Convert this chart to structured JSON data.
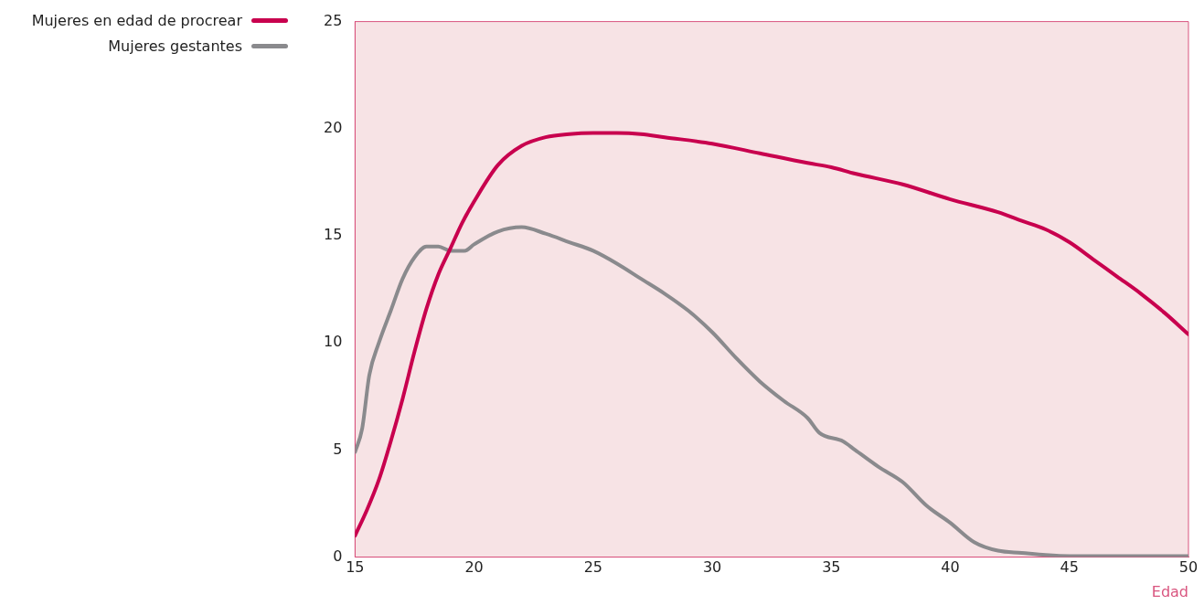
{
  "chart_data": {
    "type": "line",
    "xlabel": "Edad",
    "xlim": [
      15,
      50
    ],
    "xticks": [
      15,
      20,
      25,
      30,
      35,
      40,
      45,
      50
    ],
    "ylim": [
      0,
      25
    ],
    "yticks": [
      0,
      5,
      10,
      15,
      20,
      25
    ],
    "grid": false,
    "legend": "top left",
    "marker": "none",
    "line_style": "solid",
    "series": [
      {
        "name": "Mujeres en edad de procrear",
        "color": "#c8004e",
        "x": [
          15,
          15.5,
          16,
          16.5,
          17,
          17.5,
          18,
          18.5,
          19,
          19.5,
          20,
          21,
          22,
          23,
          24,
          25,
          26,
          27,
          28,
          30,
          32,
          34,
          35,
          36,
          38,
          40,
          42,
          43,
          44,
          45,
          46,
          47,
          48,
          49,
          50
        ],
        "values": [
          1,
          2.2,
          3.6,
          5.4,
          7.4,
          9.6,
          11.6,
          13.2,
          14.4,
          15.6,
          16.6,
          18.3,
          19.2,
          19.6,
          19.75,
          19.8,
          19.8,
          19.75,
          19.6,
          19.3,
          18.85,
          18.4,
          18.2,
          17.9,
          17.4,
          16.7,
          16.1,
          15.7,
          15.3,
          14.7,
          13.9,
          13.1,
          12.3,
          11.4,
          10.4
        ]
      },
      {
        "name": "Mujeres gestantes",
        "color": "#8a8a8d",
        "x": [
          15,
          15.3,
          15.6,
          16,
          16.5,
          17,
          17.5,
          18,
          18.5,
          19,
          19.6,
          20,
          21,
          22,
          23,
          24,
          25,
          26,
          27,
          28,
          29,
          30,
          31,
          32,
          33,
          34,
          34.5,
          35.5,
          36,
          37,
          38,
          39,
          40,
          41,
          42,
          43,
          44,
          45,
          50
        ],
        "values": [
          4.9,
          6,
          8.5,
          10,
          11.5,
          13,
          14,
          14.5,
          14.5,
          14.3,
          14.3,
          14.6,
          15.2,
          15.4,
          15.1,
          14.7,
          14.3,
          13.7,
          13,
          12.3,
          11.5,
          10.5,
          9.3,
          8.2,
          7.3,
          6.5,
          5.8,
          5.4,
          5,
          4.2,
          3.5,
          2.4,
          1.6,
          0.7,
          0.3,
          0.2,
          0.1,
          0.05,
          0.05
        ]
      }
    ]
  }
}
